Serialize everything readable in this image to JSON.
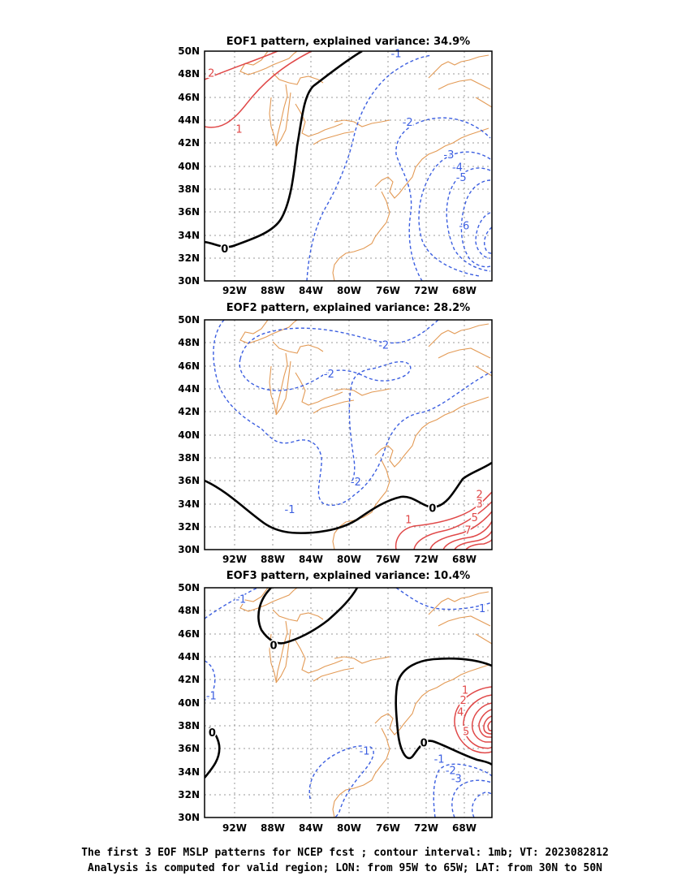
{
  "panels": [
    {
      "title": "EOF1 pattern, explained variance: 34.9%",
      "x_ticks": [
        "92W",
        "88W",
        "84W",
        "80W",
        "76W",
        "72W",
        "68W"
      ],
      "y_ticks": [
        "50N",
        "48N",
        "46N",
        "44N",
        "42N",
        "40N",
        "38N",
        "36N",
        "34N",
        "32N",
        "30N"
      ],
      "contour_labels": [
        {
          "text": "2",
          "sign": "pos",
          "lon": -94.3,
          "lat": 48.1
        },
        {
          "text": "1",
          "sign": "pos",
          "lon": -91.4,
          "lat": 43.2
        },
        {
          "text": "0",
          "sign": "zero",
          "lon": -92.9,
          "lat": 32.8
        },
        {
          "text": "-1",
          "sign": "neg",
          "lon": -75.0,
          "lat": 49.8
        },
        {
          "text": "-2",
          "sign": "neg",
          "lon": -73.8,
          "lat": 43.8
        },
        {
          "text": "-3",
          "sign": "neg",
          "lon": -69.5,
          "lat": 41.0
        },
        {
          "text": "-4",
          "sign": "neg",
          "lon": -68.6,
          "lat": 39.9
        },
        {
          "text": "-5",
          "sign": "neg",
          "lon": -68.2,
          "lat": 39.0
        },
        {
          "text": "-6",
          "sign": "neg",
          "lon": -67.9,
          "lat": 34.8
        }
      ]
    },
    {
      "title": "EOF2 pattern, explained variance: 28.2%",
      "x_ticks": [
        "92W",
        "88W",
        "84W",
        "80W",
        "76W",
        "72W",
        "68W"
      ],
      "y_ticks": [
        "50N",
        "48N",
        "46N",
        "44N",
        "42N",
        "40N",
        "38N",
        "36N",
        "34N",
        "32N",
        "30N"
      ],
      "contour_labels": [
        {
          "text": "-2",
          "sign": "neg",
          "lon": -76.3,
          "lat": 47.8
        },
        {
          "text": "-2",
          "sign": "neg",
          "lon": -82.0,
          "lat": 45.3
        },
        {
          "text": "-2",
          "sign": "neg",
          "lon": -79.2,
          "lat": 35.9
        },
        {
          "text": "-1",
          "sign": "neg",
          "lon": -86.1,
          "lat": 33.5
        },
        {
          "text": "0",
          "sign": "zero",
          "lon": -71.2,
          "lat": 33.6
        },
        {
          "text": "1",
          "sign": "pos",
          "lon": -73.7,
          "lat": 32.6
        },
        {
          "text": "2",
          "sign": "pos",
          "lon": -66.3,
          "lat": 34.8
        },
        {
          "text": "3",
          "sign": "pos",
          "lon": -66.3,
          "lat": 34.0
        },
        {
          "text": "5",
          "sign": "pos",
          "lon": -66.8,
          "lat": 32.8
        },
        {
          "text": "7",
          "sign": "pos",
          "lon": -67.5,
          "lat": 31.7
        }
      ]
    },
    {
      "title": "EOF3 pattern, explained variance: 10.4%",
      "x_ticks": [
        "92W",
        "88W",
        "84W",
        "80W",
        "76W",
        "72W",
        "68W"
      ],
      "y_ticks": [
        "50N",
        "48N",
        "46N",
        "44N",
        "42N",
        "40N",
        "38N",
        "36N",
        "34N",
        "32N",
        "30N"
      ],
      "contour_labels": [
        {
          "text": "-1",
          "sign": "neg",
          "lon": -91.2,
          "lat": 49.0
        },
        {
          "text": "0",
          "sign": "zero",
          "lon": -87.8,
          "lat": 45.0
        },
        {
          "text": "-1",
          "sign": "neg",
          "lon": -94.3,
          "lat": 40.6
        },
        {
          "text": "0",
          "sign": "zero",
          "lon": -94.2,
          "lat": 37.4
        },
        {
          "text": "-1",
          "sign": "neg",
          "lon": -78.3,
          "lat": 35.8
        },
        {
          "text": "0",
          "sign": "zero",
          "lon": -72.1,
          "lat": 36.5
        },
        {
          "text": "-1",
          "sign": "neg",
          "lon": -70.5,
          "lat": 35.1
        },
        {
          "text": "-2",
          "sign": "neg",
          "lon": -69.3,
          "lat": 34.1
        },
        {
          "text": "-3",
          "sign": "neg",
          "lon": -68.7,
          "lat": 33.4
        },
        {
          "text": "-1",
          "sign": "neg",
          "lon": -66.2,
          "lat": 48.2
        },
        {
          "text": "1",
          "sign": "pos",
          "lon": -67.8,
          "lat": 41.1
        },
        {
          "text": "2",
          "sign": "pos",
          "lon": -68.0,
          "lat": 40.2
        },
        {
          "text": "4",
          "sign": "pos",
          "lon": -68.3,
          "lat": 39.2
        },
        {
          "text": "5",
          "sign": "pos",
          "lon": -67.7,
          "lat": 37.5
        }
      ]
    }
  ],
  "caption": {
    "line1": "The first 3 EOF MSLP patterns for NCEP fcst ; contour interval: 1mb; VT: 2023082812",
    "line2": "Analysis is computed for valid region; LON: from 95W to 65W; LAT: from 30N to 50N"
  },
  "colors": {
    "positive": "#e04848",
    "negative": "#3b5ee0",
    "zero": "#000000",
    "coastline": "#e39a55",
    "grid": "#9a9a9a"
  }
}
